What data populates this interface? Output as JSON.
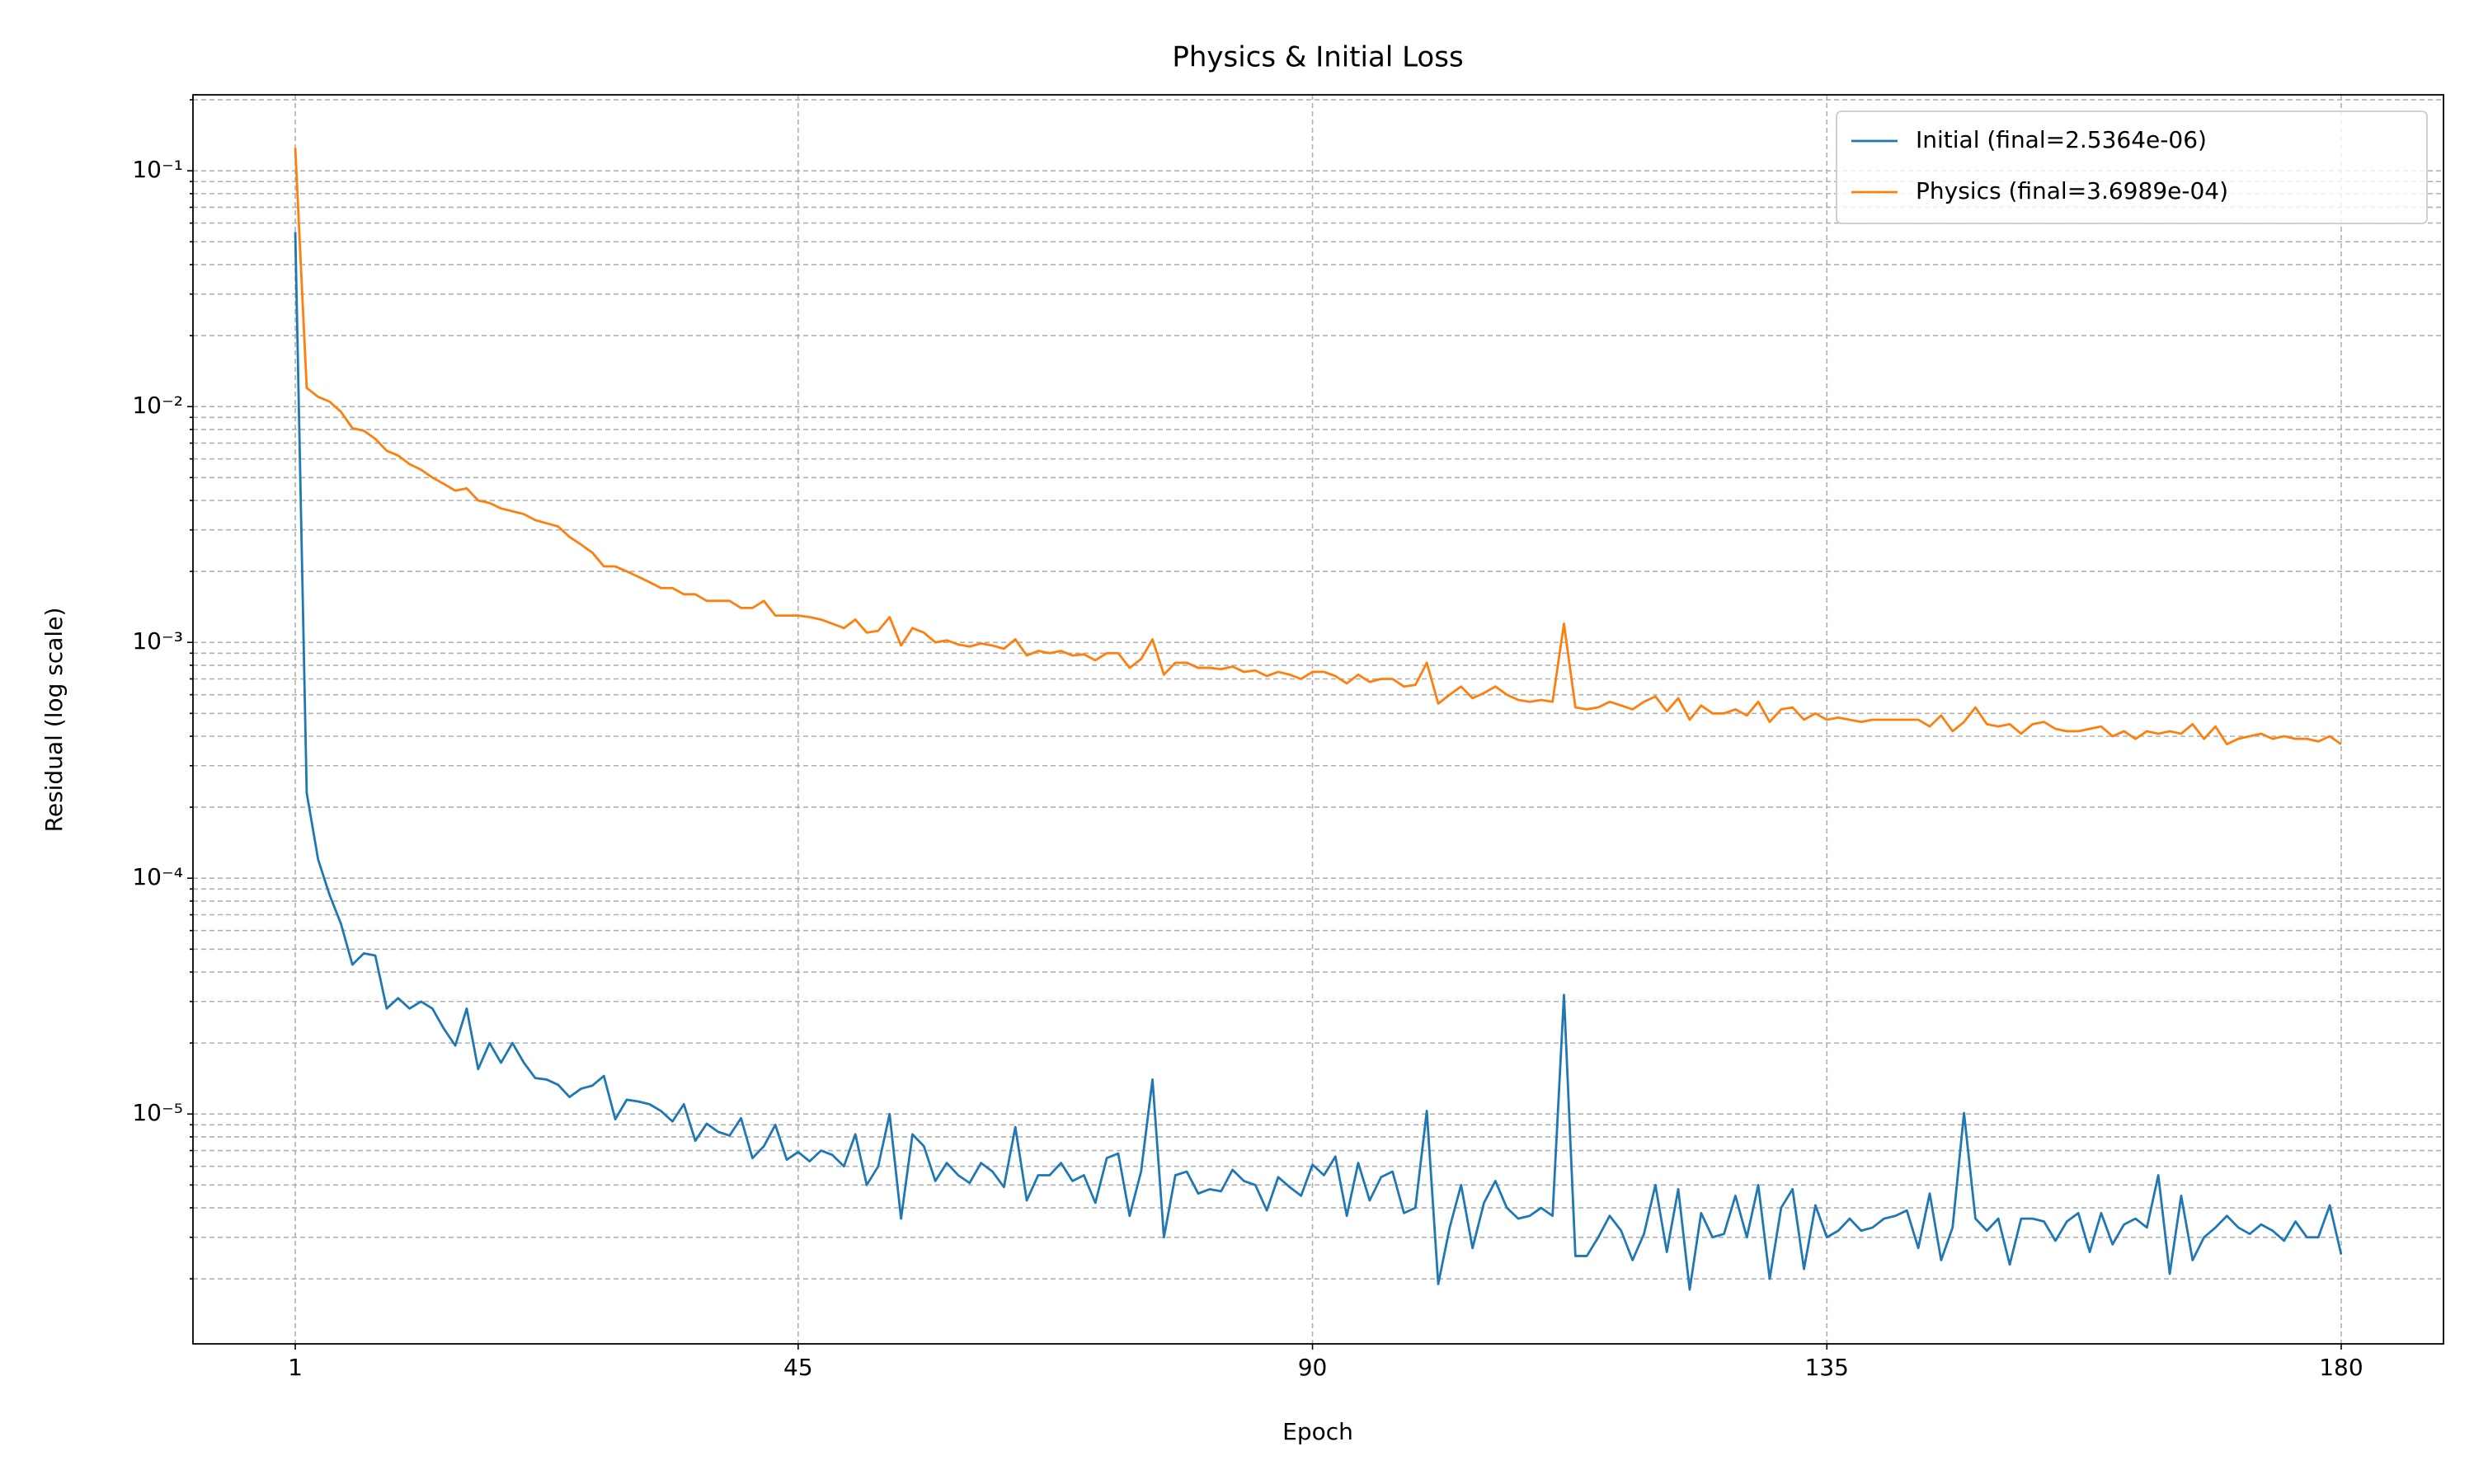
{
  "chart_data": {
    "type": "line",
    "title": "Physics & Initial Loss",
    "xlabel": "Epoch",
    "ylabel": "Residual (log scale)",
    "x": [
      1,
      2,
      3,
      4,
      5,
      6,
      7,
      8,
      9,
      10,
      11,
      12,
      13,
      14,
      15,
      16,
      17,
      18,
      19,
      20,
      21,
      22,
      23,
      24,
      25,
      26,
      27,
      28,
      29,
      30,
      31,
      32,
      33,
      34,
      35,
      36,
      37,
      38,
      39,
      40,
      41,
      42,
      43,
      44,
      45,
      46,
      47,
      48,
      49,
      50,
      51,
      52,
      53,
      54,
      55,
      56,
      57,
      58,
      59,
      60,
      61,
      62,
      63,
      64,
      65,
      66,
      67,
      68,
      69,
      70,
      71,
      72,
      73,
      74,
      75,
      76,
      77,
      78,
      79,
      80,
      81,
      82,
      83,
      84,
      85,
      86,
      87,
      88,
      89,
      90,
      91,
      92,
      93,
      94,
      95,
      96,
      97,
      98,
      99,
      100,
      101,
      102,
      103,
      104,
      105,
      106,
      107,
      108,
      109,
      110,
      111,
      112,
      113,
      114,
      115,
      116,
      117,
      118,
      119,
      120,
      121,
      122,
      123,
      124,
      125,
      126,
      127,
      128,
      129,
      130,
      131,
      132,
      133,
      134,
      135,
      136,
      137,
      138,
      139,
      140,
      141,
      142,
      143,
      144,
      145,
      146,
      147,
      148,
      149,
      150,
      151,
      152,
      153,
      154,
      155,
      156,
      157,
      158,
      159,
      160,
      161,
      162,
      163,
      164,
      165,
      166,
      167,
      168,
      169,
      170,
      171,
      172,
      173,
      174,
      175,
      176,
      177,
      178,
      179,
      180
    ],
    "series": [
      {
        "name": "Initial (final=2.5364e-06)",
        "color": "#1f77b4",
        "values": [
          0.055,
          0.00023,
          0.00012,
          8.5e-05,
          6.4e-05,
          4.3e-05,
          4.8e-05,
          4.7e-05,
          2.8e-05,
          3.1e-05,
          2.8e-05,
          3e-05,
          2.8e-05,
          2.3e-05,
          1.95e-05,
          2.8e-05,
          1.55e-05,
          2e-05,
          1.65e-05,
          2e-05,
          1.65e-05,
          1.42e-05,
          1.4e-05,
          1.33e-05,
          1.18e-05,
          1.28e-05,
          1.32e-05,
          1.45e-05,
          9.5e-06,
          1.15e-05,
          1.13e-05,
          1.1e-05,
          1.03e-05,
          9.3e-06,
          1.1e-05,
          7.7e-06,
          9.1e-06,
          8.4e-06,
          8.1e-06,
          9.6e-06,
          6.5e-06,
          7.3e-06,
          9e-06,
          6.4e-06,
          6.9e-06,
          6.3e-06,
          7e-06,
          6.7e-06,
          6e-06,
          8.2e-06,
          5e-06,
          6e-06,
          1e-05,
          3.6e-06,
          8.2e-06,
          7.3e-06,
          5.2e-06,
          6.2e-06,
          5.5e-06,
          5.1e-06,
          6.2e-06,
          5.7e-06,
          4.9e-06,
          8.8e-06,
          4.3e-06,
          5.5e-06,
          5.5e-06,
          6.2e-06,
          5.2e-06,
          5.5e-06,
          4.2e-06,
          6.5e-06,
          6.8e-06,
          3.7e-06,
          5.7e-06,
          1.4e-05,
          3e-06,
          5.5e-06,
          5.7e-06,
          4.6e-06,
          4.8e-06,
          4.7e-06,
          5.8e-06,
          5.2e-06,
          5e-06,
          3.9e-06,
          5.4e-06,
          4.9e-06,
          4.5e-06,
          6.1e-06,
          5.5e-06,
          6.6e-06,
          3.7e-06,
          6.2e-06,
          4.3e-06,
          5.4e-06,
          5.7e-06,
          3.8e-06,
          4e-06,
          1.03e-05,
          1.9e-06,
          3.3e-06,
          5e-06,
          2.7e-06,
          4.2e-06,
          5.2e-06,
          4e-06,
          3.6e-06,
          3.7e-06,
          4e-06,
          3.7e-06,
          3.2e-05,
          2.5e-06,
          2.5e-06,
          3e-06,
          3.7e-06,
          3.2e-06,
          2.4e-06,
          3.1e-06,
          5e-06,
          2.6e-06,
          4.8e-06,
          1.8e-06,
          3.8e-06,
          3e-06,
          3.1e-06,
          4.5e-06,
          3e-06,
          5e-06,
          2e-06,
          4e-06,
          4.8e-06,
          2.2e-06,
          4.1e-06,
          3e-06,
          3.2e-06,
          3.6e-06,
          3.2e-06,
          3.3e-06,
          3.6e-06,
          3.7e-06,
          3.9e-06,
          2.7e-06,
          4.6e-06,
          2.4e-06,
          3.3e-06,
          1.01e-05,
          3.6e-06,
          3.2e-06,
          3.6e-06,
          2.3e-06,
          3.6e-06,
          3.6e-06,
          3.5e-06,
          2.9e-06,
          3.5e-06,
          3.8e-06,
          2.6e-06,
          3.8e-06,
          2.8e-06,
          3.4e-06,
          3.6e-06,
          3.3e-06,
          5.5e-06,
          2.1e-06,
          4.5e-06,
          2.4e-06,
          3e-06,
          3.3e-06,
          3.7e-06,
          3.3e-06,
          3.1e-06,
          3.4e-06,
          3.2e-06,
          2.9e-06,
          3.5e-06,
          3e-06,
          3e-06,
          4.1e-06,
          2.5364e-06
        ]
      },
      {
        "name": "Physics (final=3.6989e-04)",
        "color": "#ff7f0e",
        "values": [
          0.125,
          0.012,
          0.011,
          0.0105,
          0.0095,
          0.0081,
          0.0079,
          0.0073,
          0.0065,
          0.0062,
          0.0057,
          0.0054,
          0.005,
          0.0047,
          0.0044,
          0.0045,
          0.004,
          0.0039,
          0.0037,
          0.0036,
          0.0035,
          0.0033,
          0.0032,
          0.0031,
          0.0028,
          0.0026,
          0.0024,
          0.0021,
          0.0021,
          0.002,
          0.0019,
          0.0018,
          0.0017,
          0.0017,
          0.0016,
          0.0016,
          0.0015,
          0.0015,
          0.0015,
          0.0014,
          0.0014,
          0.0015,
          0.0013,
          0.0013,
          0.0013,
          0.00128,
          0.00125,
          0.0012,
          0.00115,
          0.00125,
          0.0011,
          0.00112,
          0.00128,
          0.00097,
          0.00115,
          0.0011,
          0.001,
          0.00102,
          0.00098,
          0.00096,
          0.00099,
          0.00097,
          0.00094,
          0.00103,
          0.00088,
          0.00092,
          0.0009,
          0.00092,
          0.00088,
          0.00089,
          0.00084,
          0.0009,
          0.0009,
          0.00078,
          0.00085,
          0.00103,
          0.00073,
          0.00082,
          0.00082,
          0.00078,
          0.00078,
          0.00077,
          0.00079,
          0.00075,
          0.00076,
          0.00072,
          0.00075,
          0.00073,
          0.0007,
          0.00075,
          0.00075,
          0.00072,
          0.00067,
          0.00073,
          0.00068,
          0.0007,
          0.0007,
          0.00065,
          0.00066,
          0.00082,
          0.00055,
          0.0006,
          0.00065,
          0.00058,
          0.00061,
          0.00065,
          0.0006,
          0.00057,
          0.00056,
          0.00057,
          0.00056,
          0.0012,
          0.00053,
          0.00052,
          0.00053,
          0.00056,
          0.00054,
          0.00052,
          0.00056,
          0.00059,
          0.00051,
          0.00058,
          0.00047,
          0.00054,
          0.0005,
          0.0005,
          0.00052,
          0.00049,
          0.00056,
          0.00046,
          0.00052,
          0.00053,
          0.00047,
          0.0005,
          0.00047,
          0.00048,
          0.00047,
          0.00046,
          0.00047,
          0.00047,
          0.00047,
          0.00047,
          0.00047,
          0.00044,
          0.00049,
          0.00042,
          0.00046,
          0.00053,
          0.00045,
          0.00044,
          0.00045,
          0.00041,
          0.00045,
          0.00046,
          0.00043,
          0.00042,
          0.00042,
          0.00043,
          0.00044,
          0.0004,
          0.00042,
          0.00039,
          0.00042,
          0.00041,
          0.00042,
          0.00041,
          0.00045,
          0.00039,
          0.00044,
          0.00037,
          0.00039,
          0.0004,
          0.00041,
          0.00039,
          0.0004,
          0.00039,
          0.00039,
          0.00038,
          0.0004,
          0.00036989
        ]
      }
    ],
    "xlim": [
      -7.95,
      188.95
    ],
    "xticks": [
      1,
      45,
      90,
      135,
      180
    ],
    "ylim": [
      1.06e-06,
      0.21
    ],
    "ylog": true,
    "yticks": [
      {
        "value": 1e-05,
        "label": "10⁻⁵"
      },
      {
        "value": 0.0001,
        "label": "10⁻⁴"
      },
      {
        "value": 0.001,
        "label": "10⁻³"
      },
      {
        "value": 0.01,
        "label": "10⁻²"
      },
      {
        "value": 0.1,
        "label": "10⁻¹"
      }
    ],
    "yticks_minor": [
      2e-06,
      3e-06,
      4e-06,
      5e-06,
      6e-06,
      7e-06,
      8e-06,
      9e-06,
      2e-05,
      3e-05,
      4e-05,
      5e-05,
      6e-05,
      7e-05,
      8e-05,
      9e-05,
      0.0002,
      0.0003,
      0.0004,
      0.0005,
      0.0006,
      0.0007,
      0.0008,
      0.0009,
      0.002,
      0.003,
      0.004,
      0.005,
      0.006,
      0.007,
      0.008,
      0.009,
      0.02,
      0.03,
      0.04,
      0.05,
      0.06,
      0.07,
      0.08,
      0.09,
      0.2
    ],
    "grid": true,
    "minor_grid": true,
    "legend": "upper right"
  }
}
